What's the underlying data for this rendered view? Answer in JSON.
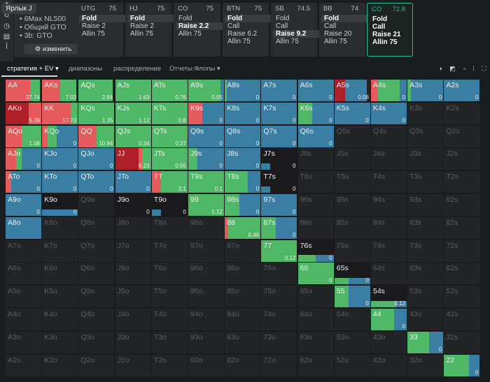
{
  "tooltip": "Ярлык J",
  "info": {
    "lines": [
      "6Max NL500",
      "Общий GTO",
      "3b: GTO"
    ],
    "edit_label": "изменить",
    "edit_icon": "gear-icon"
  },
  "left_tools": [
    "play-icon",
    "refresh-icon",
    "clock-icon",
    "stack-icon",
    "text-icon"
  ],
  "positions": [
    {
      "name": "UTG",
      "stack": "75",
      "actions": [
        "Fold",
        "Raise 2",
        "Allin 75"
      ],
      "selected": 0
    },
    {
      "name": "HJ",
      "stack": "75",
      "actions": [
        "Fold",
        "Raise 2",
        "Allin 75"
      ],
      "selected": 0
    },
    {
      "name": "CO",
      "stack": "75",
      "actions": [
        "Fold",
        "Raise 2.2",
        "Allin 75"
      ],
      "selected": 1
    },
    {
      "name": "BTN",
      "stack": "75",
      "actions": [
        "Fold",
        "Call",
        "Raise 6.2",
        "Allin 75"
      ],
      "selected": 0
    },
    {
      "name": "SB",
      "stack": "74.5",
      "actions": [
        "Fold",
        "Call",
        "Raise 9.2",
        "Allin 75"
      ],
      "selected": 2
    },
    {
      "name": "BB",
      "stack": "74",
      "actions": [
        "Fold",
        "Call",
        "Raise 20",
        "Allin 75"
      ],
      "selected": 0
    },
    {
      "name": "CO",
      "stack": "72.8",
      "actions": [
        "Fold",
        "Call",
        "Raise 21",
        "Allin 75"
      ],
      "selected": -1,
      "active": true
    }
  ],
  "tabs": [
    "стратегия + EV",
    "диапазоны",
    "распределение",
    "Отчеты:Флопы"
  ],
  "colors": {
    "fold": "#3a7fa3",
    "call": "#4fb866",
    "raise": "#e55a5a",
    "allin": "#b01e2a"
  },
  "hands": [
    {
      "h": "AA",
      "ev": "27.74",
      "f": 0,
      "c": 0.28,
      "r": 0.68,
      "a": 0
    },
    {
      "h": "AKs",
      "ev": "7.03",
      "f": 0,
      "c": 0.45,
      "r": 0.5,
      "a": 0
    },
    {
      "h": "AQs",
      "ev": "2.84",
      "f": 0,
      "c": 0.96,
      "r": 0,
      "a": 0
    },
    {
      "h": "AJs",
      "ev": "1.63",
      "f": 0,
      "c": 1,
      "r": 0,
      "a": 0
    },
    {
      "h": "ATs",
      "ev": "0.76",
      "f": 0,
      "c": 1,
      "r": 0,
      "a": 0
    },
    {
      "h": "A9s",
      "ev": "0.05",
      "f": 0.1,
      "c": 0.9,
      "r": 0,
      "a": 0
    },
    {
      "h": "A8s",
      "ev": "0",
      "f": 0.95,
      "c": 0.05,
      "r": 0,
      "a": 0
    },
    {
      "h": "A7s",
      "ev": "0",
      "f": 1,
      "c": 0,
      "r": 0,
      "a": 0
    },
    {
      "h": "A6s",
      "ev": "0",
      "f": 1,
      "c": 0,
      "r": 0,
      "a": 0
    },
    {
      "h": "A5s",
      "ev": "0.08",
      "f": 0.6,
      "c": 0,
      "r": 0,
      "a": 0.3
    },
    {
      "h": "A4s",
      "ev": "0",
      "f": 0.2,
      "c": 0.6,
      "r": 0.2,
      "a": 0
    },
    {
      "h": "A3s",
      "ev": "0",
      "f": 0.9,
      "c": 0.1,
      "r": 0,
      "a": 0
    },
    {
      "h": "A2s",
      "ev": "0",
      "f": 1,
      "c": 0,
      "r": 0,
      "a": 0
    },
    {
      "h": "AKo",
      "ev": "5.39",
      "f": 0,
      "c": 0,
      "r": 0.35,
      "a": 0.65
    },
    {
      "h": "KK",
      "ev": "17.73",
      "f": 0,
      "c": 0.2,
      "r": 0.8,
      "a": 0
    },
    {
      "h": "KQs",
      "ev": "1.35",
      "f": 0,
      "c": 1,
      "r": 0,
      "a": 0
    },
    {
      "h": "KJs",
      "ev": "1.12",
      "f": 0,
      "c": 1,
      "r": 0,
      "a": 0
    },
    {
      "h": "KTs",
      "ev": "0.8",
      "f": 0,
      "c": 1,
      "r": 0,
      "a": 0
    },
    {
      "h": "K9s",
      "ev": "0",
      "f": 0.6,
      "c": 0,
      "r": 0.4,
      "a": 0
    },
    {
      "h": "K8s",
      "ev": "0",
      "f": 1,
      "c": 0,
      "r": 0,
      "a": 0
    },
    {
      "h": "K7s",
      "ev": "0",
      "f": 1,
      "c": 0,
      "r": 0,
      "a": 0
    },
    {
      "h": "K6s",
      "ev": "0",
      "f": 0.6,
      "c": 0.4,
      "r": 0,
      "a": 0
    },
    {
      "h": "K5s",
      "ev": "0",
      "f": 1,
      "c": 0,
      "r": 0,
      "a": 0
    },
    {
      "h": "K4s",
      "ev": "0",
      "f": 1,
      "c": 0,
      "r": 0,
      "a": 0
    },
    {
      "h": "K3s"
    },
    {
      "h": "K2s"
    },
    {
      "h": "AQo",
      "ev": "1.08",
      "f": 0,
      "c": 0.55,
      "r": 0.45,
      "a": 0
    },
    {
      "h": "KQo",
      "ev": "0",
      "f": 0.6,
      "c": 0.25,
      "r": 0.15,
      "a": 0
    },
    {
      "h": "QQ",
      "ev": "10.94",
      "f": 0,
      "c": 0.5,
      "r": 0.5,
      "a": 0
    },
    {
      "h": "QJs",
      "ev": "0.34",
      "f": 0,
      "c": 1,
      "r": 0,
      "a": 0
    },
    {
      "h": "QTs",
      "ev": "0.37",
      "f": 0,
      "c": 1,
      "r": 0,
      "a": 0
    },
    {
      "h": "Q9s",
      "ev": "0",
      "f": 1,
      "c": 0,
      "r": 0,
      "a": 0
    },
    {
      "h": "Q8s",
      "ev": "0",
      "f": 1,
      "c": 0,
      "r": 0,
      "a": 0
    },
    {
      "h": "Q7s",
      "ev": "0",
      "f": 1,
      "c": 0,
      "r": 0,
      "a": 0
    },
    {
      "h": "Q6s",
      "ev": "0",
      "f": 1,
      "c": 0,
      "r": 0,
      "a": 0
    },
    {
      "h": "Q5s"
    },
    {
      "h": "Q4s"
    },
    {
      "h": "Q3s"
    },
    {
      "h": "Q2s"
    },
    {
      "h": "AJo",
      "ev": "0",
      "f": 0.55,
      "c": 0.15,
      "r": 0.3,
      "a": 0
    },
    {
      "h": "KJo",
      "ev": "0",
      "f": 1,
      "c": 0,
      "r": 0,
      "a": 0
    },
    {
      "h": "QJo",
      "ev": "0",
      "f": 1,
      "c": 0,
      "r": 0,
      "a": 0
    },
    {
      "h": "JJ",
      "ev": "6.23",
      "f": 0,
      "c": 0.25,
      "r": 0.1,
      "a": 0.65
    },
    {
      "h": "JTs",
      "ev": "0.55",
      "f": 0,
      "c": 1,
      "r": 0,
      "a": 0
    },
    {
      "h": "J9s",
      "ev": "0",
      "f": 0.75,
      "c": 0.25,
      "r": 0,
      "a": 0
    },
    {
      "h": "J8s",
      "ev": "0",
      "f": 1,
      "c": 0,
      "r": 0,
      "a": 0
    },
    {
      "h": "J7s",
      "ev": "0",
      "f": 0.25,
      "c": 0,
      "r": 0,
      "a": 0,
      "part": true
    },
    {
      "h": "J6s"
    },
    {
      "h": "J5s"
    },
    {
      "h": "J4s"
    },
    {
      "h": "J3s"
    },
    {
      "h": "J2s"
    },
    {
      "h": "ATo",
      "ev": "0",
      "f": 0.85,
      "c": 0,
      "r": 0.15,
      "a": 0
    },
    {
      "h": "KTo",
      "ev": "0",
      "f": 1,
      "c": 0,
      "r": 0,
      "a": 0
    },
    {
      "h": "QTo",
      "ev": "0",
      "f": 1,
      "c": 0,
      "r": 0,
      "a": 0
    },
    {
      "h": "JTo",
      "ev": "0",
      "f": 1,
      "c": 0,
      "r": 0,
      "a": 0
    },
    {
      "h": "TT",
      "ev": "3.1",
      "f": 0,
      "c": 0.75,
      "r": 0.25,
      "a": 0
    },
    {
      "h": "T9s",
      "ev": "0.1",
      "f": 0,
      "c": 1,
      "r": 0,
      "a": 0
    },
    {
      "h": "T8s",
      "ev": "0",
      "f": 0.35,
      "c": 0.65,
      "r": 0,
      "a": 0
    },
    {
      "h": "T7s",
      "ev": "0",
      "f": 0.25,
      "c": 0,
      "r": 0,
      "a": 0,
      "part": true
    },
    {
      "h": "T6s"
    },
    {
      "h": "T5s"
    },
    {
      "h": "T4s"
    },
    {
      "h": "T3s"
    },
    {
      "h": "T2s"
    },
    {
      "h": "A9o",
      "ev": "0",
      "f": 1,
      "c": 0,
      "r": 0,
      "a": 0
    },
    {
      "h": "K9o",
      "ev": "0",
      "f": 1,
      "c": 0,
      "r": 0,
      "a": 0,
      "part": true
    },
    {
      "h": "Q9o"
    },
    {
      "h": "J9o",
      "ev": "0",
      "f": 0,
      "c": 0,
      "r": 0,
      "a": 0,
      "part": true
    },
    {
      "h": "T9o",
      "ev": "0",
      "f": 0.25,
      "c": 0,
      "r": 0,
      "a": 0,
      "part": true
    },
    {
      "h": "99",
      "ev": "1.12",
      "f": 0,
      "c": 1,
      "r": 0,
      "a": 0
    },
    {
      "h": "98s",
      "ev": "0",
      "f": 0.6,
      "c": 0.4,
      "r": 0,
      "a": 0
    },
    {
      "h": "97s",
      "ev": "0",
      "f": 1,
      "c": 0,
      "r": 0,
      "a": 0
    },
    {
      "h": "96s"
    },
    {
      "h": "95s"
    },
    {
      "h": "94s"
    },
    {
      "h": "93s"
    },
    {
      "h": "92s"
    },
    {
      "h": "A8o",
      "ev": "",
      "f": 1,
      "c": 0,
      "r": 0,
      "a": 0
    },
    {
      "h": "K8o"
    },
    {
      "h": "Q8o"
    },
    {
      "h": "J8o"
    },
    {
      "h": "T8o"
    },
    {
      "h": "98o"
    },
    {
      "h": "88",
      "ev": "0.46",
      "f": 0,
      "c": 0.9,
      "r": 0.1,
      "a": 0
    },
    {
      "h": "87s",
      "ev": "0",
      "f": 0.6,
      "c": 0.4,
      "r": 0,
      "a": 0
    },
    {
      "h": "86s"
    },
    {
      "h": "85s"
    },
    {
      "h": "84s"
    },
    {
      "h": "83s"
    },
    {
      "h": "82s"
    },
    {
      "h": "A7o"
    },
    {
      "h": "K7o"
    },
    {
      "h": "Q7o"
    },
    {
      "h": "J7o"
    },
    {
      "h": "T7o"
    },
    {
      "h": "97o"
    },
    {
      "h": "87o"
    },
    {
      "h": "77",
      "ev": "0.12",
      "f": 0,
      "c": 1,
      "r": 0,
      "a": 0
    },
    {
      "h": "76s",
      "ev": "0",
      "f": 0.5,
      "c": 0.5,
      "r": 0,
      "a": 0,
      "part": true
    },
    {
      "h": "75s"
    },
    {
      "h": "74s"
    },
    {
      "h": "73s"
    },
    {
      "h": "72s"
    },
    {
      "h": "A6o"
    },
    {
      "h": "K6o"
    },
    {
      "h": "Q6o"
    },
    {
      "h": "J6o"
    },
    {
      "h": "T6o"
    },
    {
      "h": "96o"
    },
    {
      "h": "86o"
    },
    {
      "h": "76o"
    },
    {
      "h": "66",
      "ev": "0",
      "f": 0,
      "c": 1,
      "r": 0,
      "a": 0
    },
    {
      "h": "65s",
      "ev": "0",
      "f": 0.6,
      "c": 0.4,
      "r": 0,
      "a": 0,
      "part": true
    },
    {
      "h": "64s"
    },
    {
      "h": "63s"
    },
    {
      "h": "62s"
    },
    {
      "h": "A5o"
    },
    {
      "h": "K5o"
    },
    {
      "h": "Q5o"
    },
    {
      "h": "J5o"
    },
    {
      "h": "T5o"
    },
    {
      "h": "95o"
    },
    {
      "h": "85o"
    },
    {
      "h": "75o"
    },
    {
      "h": "65o"
    },
    {
      "h": "55",
      "ev": "0",
      "f": 0.6,
      "c": 0.4,
      "r": 0,
      "a": 0
    },
    {
      "h": "54s",
      "ev": "0.12",
      "f": 0.3,
      "c": 0.7,
      "r": 0,
      "a": 0,
      "part": true
    },
    {
      "h": "53s"
    },
    {
      "h": "52s"
    },
    {
      "h": "A4o"
    },
    {
      "h": "K4o"
    },
    {
      "h": "Q4o"
    },
    {
      "h": "J4o"
    },
    {
      "h": "T4o"
    },
    {
      "h": "94o"
    },
    {
      "h": "84o"
    },
    {
      "h": "74o"
    },
    {
      "h": "64o"
    },
    {
      "h": "54o"
    },
    {
      "h": "44",
      "ev": "0",
      "f": 0.35,
      "c": 0.65,
      "r": 0,
      "a": 0
    },
    {
      "h": "43s"
    },
    {
      "h": "42s"
    },
    {
      "h": "A3o"
    },
    {
      "h": "K3o"
    },
    {
      "h": "Q3o"
    },
    {
      "h": "J3o"
    },
    {
      "h": "T3o"
    },
    {
      "h": "93o"
    },
    {
      "h": "83o"
    },
    {
      "h": "73o"
    },
    {
      "h": "63o"
    },
    {
      "h": "53o"
    },
    {
      "h": "43o"
    },
    {
      "h": "33",
      "ev": "0",
      "f": 0.4,
      "c": 0.6,
      "r": 0,
      "a": 0
    },
    {
      "h": "32s"
    },
    {
      "h": "A2o"
    },
    {
      "h": "K2o"
    },
    {
      "h": "Q2o"
    },
    {
      "h": "J2o"
    },
    {
      "h": "T2o"
    },
    {
      "h": "92o"
    },
    {
      "h": "82o"
    },
    {
      "h": "72o"
    },
    {
      "h": "62o"
    },
    {
      "h": "52o"
    },
    {
      "h": "42o"
    },
    {
      "h": "32o"
    },
    {
      "h": "22",
      "ev": "0",
      "f": 0.3,
      "c": 0.7,
      "r": 0,
      "a": 0
    }
  ]
}
